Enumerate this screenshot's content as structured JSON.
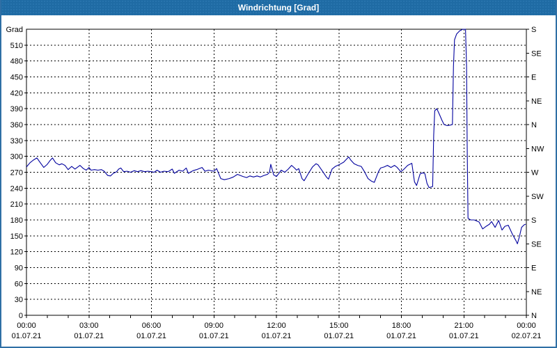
{
  "window": {
    "title": "Windrichtung [Grad]",
    "title_bar_color": "#1f6ba4",
    "border_color": "#2f6fa5",
    "background": "#ffffff"
  },
  "chart_data": {
    "type": "line",
    "title": "Windrichtung [Grad]",
    "ylabel": "Grad",
    "xlabel": "",
    "ylim": [
      0,
      540
    ],
    "xlim_hours": [
      0,
      24
    ],
    "grid": "dashed-black",
    "legend_position": "none",
    "line_color": "#00009e",
    "y_left_ticks": [
      0,
      30,
      60,
      90,
      120,
      150,
      180,
      210,
      240,
      270,
      300,
      330,
      360,
      390,
      420,
      450,
      480,
      510
    ],
    "y_left_unit_label": "Grad",
    "y_right_ticks": [
      {
        "value": 0,
        "label": "N"
      },
      {
        "value": 45,
        "label": "NE"
      },
      {
        "value": 90,
        "label": "E"
      },
      {
        "value": 135,
        "label": "SE"
      },
      {
        "value": 180,
        "label": "S"
      },
      {
        "value": 225,
        "label": "SW"
      },
      {
        "value": 270,
        "label": "W"
      },
      {
        "value": 315,
        "label": "NW"
      },
      {
        "value": 360,
        "label": "N"
      },
      {
        "value": 405,
        "label": "NE"
      },
      {
        "value": 450,
        "label": "E"
      },
      {
        "value": 495,
        "label": "SE"
      },
      {
        "value": 540,
        "label": "S"
      }
    ],
    "x_ticks": [
      {
        "hour": 0,
        "time": "00:00",
        "date": "01.07.21"
      },
      {
        "hour": 3,
        "time": "03:00",
        "date": "01.07.21"
      },
      {
        "hour": 6,
        "time": "06:00",
        "date": "01.07.21"
      },
      {
        "hour": 9,
        "time": "09:00",
        "date": "01.07.21"
      },
      {
        "hour": 12,
        "time": "12:00",
        "date": "01.07.21"
      },
      {
        "hour": 15,
        "time": "15:00",
        "date": "01.07.21"
      },
      {
        "hour": 18,
        "time": "18:00",
        "date": "01.07.21"
      },
      {
        "hour": 21,
        "time": "21:00",
        "date": "01.07.21"
      },
      {
        "hour": 24,
        "time": "00:00",
        "date": "02.07.21"
      }
    ],
    "minor_x_tick_every_hours": 1,
    "series": [
      {
        "name": "Windrichtung",
        "points": [
          [
            0,
            280
          ],
          [
            0.17,
            288
          ],
          [
            0.33,
            293
          ],
          [
            0.5,
            297
          ],
          [
            0.63,
            290
          ],
          [
            0.83,
            279
          ],
          [
            1,
            285
          ],
          [
            1.13,
            292
          ],
          [
            1.25,
            297
          ],
          [
            1.4,
            288
          ],
          [
            1.57,
            284
          ],
          [
            1.7,
            286
          ],
          [
            1.85,
            283
          ],
          [
            2,
            275
          ],
          [
            2.17,
            281
          ],
          [
            2.33,
            276
          ],
          [
            2.57,
            283
          ],
          [
            2.73,
            277
          ],
          [
            2.87,
            274
          ],
          [
            3,
            279
          ],
          [
            3.1,
            274
          ],
          [
            3.27,
            275
          ],
          [
            3.43,
            274
          ],
          [
            3.6,
            275
          ],
          [
            3.73,
            272
          ],
          [
            3.9,
            264
          ],
          [
            4.03,
            263
          ],
          [
            4.17,
            268
          ],
          [
            4.33,
            271
          ],
          [
            4.43,
            276
          ],
          [
            4.53,
            278
          ],
          [
            4.67,
            271
          ],
          [
            4.83,
            272
          ],
          [
            5,
            270
          ],
          [
            5.17,
            273
          ],
          [
            5.33,
            271
          ],
          [
            5.5,
            273
          ],
          [
            5.67,
            271
          ],
          [
            5.83,
            272
          ],
          [
            6,
            271
          ],
          [
            6.13,
            270
          ],
          [
            6.27,
            274
          ],
          [
            6.43,
            270
          ],
          [
            6.6,
            272
          ],
          [
            6.8,
            271
          ],
          [
            7,
            276
          ],
          [
            7.1,
            268
          ],
          [
            7.33,
            274
          ],
          [
            7.5,
            272
          ],
          [
            7.67,
            278
          ],
          [
            7.77,
            268
          ],
          [
            8,
            273
          ],
          [
            8.17,
            275
          ],
          [
            8.43,
            279
          ],
          [
            8.57,
            272
          ],
          [
            8.73,
            274
          ],
          [
            9,
            272
          ],
          [
            9.13,
            277
          ],
          [
            9.33,
            258
          ],
          [
            9.5,
            256
          ],
          [
            9.73,
            258
          ],
          [
            9.93,
            261
          ],
          [
            10.13,
            266
          ],
          [
            10.27,
            264
          ],
          [
            10.4,
            262
          ],
          [
            10.57,
            260
          ],
          [
            10.73,
            263
          ],
          [
            10.9,
            261
          ],
          [
            11.07,
            263
          ],
          [
            11.23,
            261
          ],
          [
            11.4,
            264
          ],
          [
            11.57,
            266
          ],
          [
            11.67,
            270
          ],
          [
            11.73,
            285
          ],
          [
            11.87,
            265
          ],
          [
            12,
            262
          ],
          [
            12.1,
            267
          ],
          [
            12.23,
            274
          ],
          [
            12.4,
            270
          ],
          [
            12.57,
            276
          ],
          [
            12.73,
            283
          ],
          [
            12.87,
            278
          ],
          [
            12.97,
            274
          ],
          [
            13.07,
            277
          ],
          [
            13.23,
            258
          ],
          [
            13.33,
            254
          ],
          [
            13.57,
            270
          ],
          [
            13.73,
            280
          ],
          [
            13.9,
            286
          ],
          [
            14,
            284
          ],
          [
            14.23,
            271
          ],
          [
            14.4,
            261
          ],
          [
            14.5,
            257
          ],
          [
            14.67,
            276
          ],
          [
            14.83,
            281
          ],
          [
            15,
            284
          ],
          [
            15.23,
            289
          ],
          [
            15.47,
            299
          ],
          [
            15.57,
            293
          ],
          [
            15.73,
            286
          ],
          [
            15.9,
            283
          ],
          [
            16.07,
            281
          ],
          [
            16.23,
            271
          ],
          [
            16.4,
            258
          ],
          [
            16.57,
            253
          ],
          [
            16.7,
            251
          ],
          [
            16.9,
            271
          ],
          [
            17,
            278
          ],
          [
            17.17,
            280
          ],
          [
            17.33,
            283
          ],
          [
            17.5,
            279
          ],
          [
            17.67,
            283
          ],
          [
            17.8,
            279
          ],
          [
            17.97,
            271
          ],
          [
            18.1,
            275
          ],
          [
            18.3,
            283
          ],
          [
            18.5,
            287
          ],
          [
            18.63,
            252
          ],
          [
            18.73,
            245
          ],
          [
            18.9,
            267
          ],
          [
            19.03,
            269
          ],
          [
            19.13,
            267
          ],
          [
            19.23,
            249
          ],
          [
            19.33,
            241
          ],
          [
            19.5,
            243
          ],
          [
            19.55,
            340
          ],
          [
            19.6,
            386
          ],
          [
            19.7,
            390
          ],
          [
            19.83,
            379
          ],
          [
            19.95,
            368
          ],
          [
            20.05,
            360
          ],
          [
            20.2,
            358
          ],
          [
            20.33,
            359
          ],
          [
            20.45,
            360
          ],
          [
            20.5,
            470
          ],
          [
            20.55,
            520
          ],
          [
            20.65,
            531
          ],
          [
            20.8,
            537
          ],
          [
            20.95,
            540
          ],
          [
            21.08,
            540
          ],
          [
            21.13,
            470
          ],
          [
            21.16,
            320
          ],
          [
            21.2,
            183
          ],
          [
            21.33,
            180
          ],
          [
            21.5,
            180
          ],
          [
            21.73,
            176
          ],
          [
            21.9,
            163
          ],
          [
            22.07,
            168
          ],
          [
            22.23,
            172
          ],
          [
            22.33,
            177
          ],
          [
            22.5,
            166
          ],
          [
            22.67,
            179
          ],
          [
            22.83,
            161
          ],
          [
            22.97,
            168
          ],
          [
            23.13,
            170
          ],
          [
            23.33,
            153
          ],
          [
            23.5,
            141
          ],
          [
            23.57,
            135
          ],
          [
            23.67,
            149
          ],
          [
            23.77,
            166
          ],
          [
            23.9,
            171
          ],
          [
            23.97,
            172
          ]
        ]
      }
    ]
  }
}
